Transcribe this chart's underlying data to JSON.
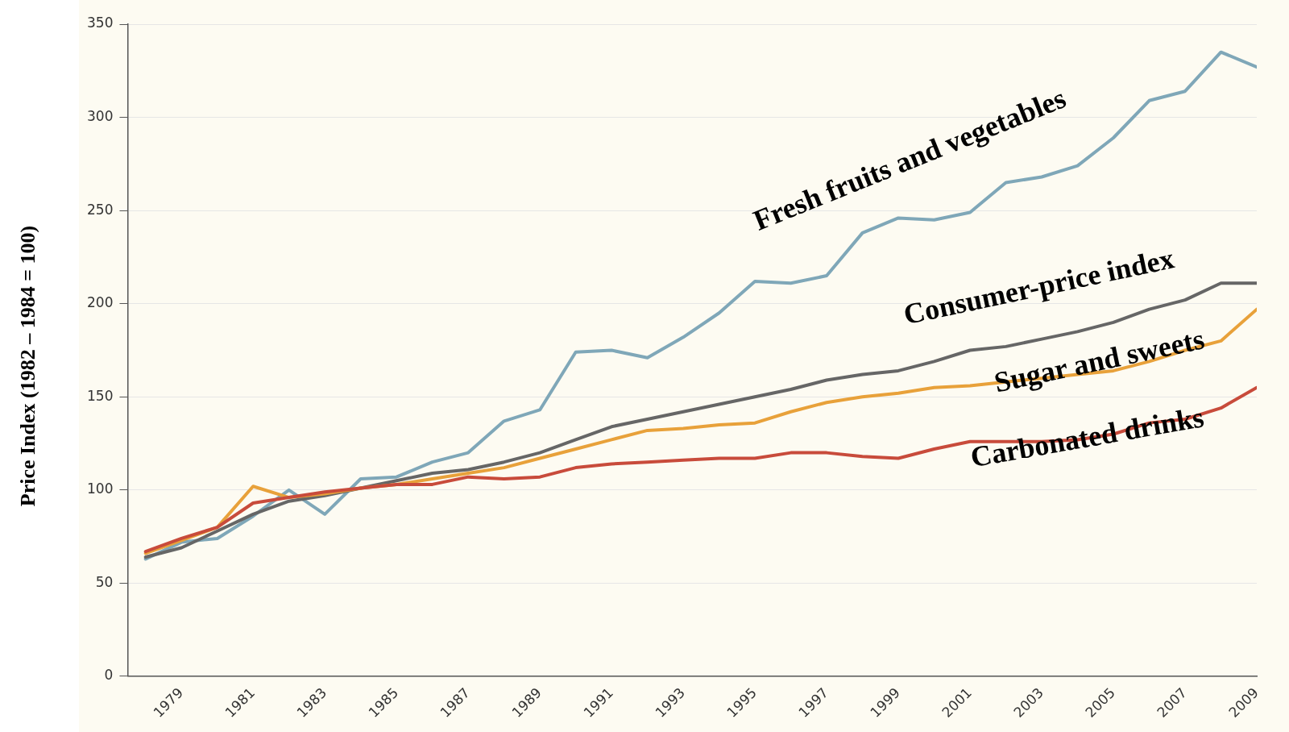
{
  "chart_data": {
    "type": "line",
    "ylabel": "Price Index (1982 – 1984 = 100)",
    "x": [
      1978,
      1979,
      1980,
      1981,
      1982,
      1983,
      1984,
      1985,
      1986,
      1987,
      1988,
      1989,
      1990,
      1991,
      1992,
      1993,
      1994,
      1995,
      1996,
      1997,
      1998,
      1999,
      2000,
      2001,
      2002,
      2003,
      2004,
      2005,
      2006,
      2007,
      2008,
      2009
    ],
    "xlim": [
      1977.5,
      2009
    ],
    "xticks": [
      1979,
      1981,
      1983,
      1985,
      1987,
      1989,
      1991,
      1993,
      1995,
      1997,
      1999,
      2001,
      2003,
      2005,
      2007,
      2009
    ],
    "ylim": [
      0,
      350
    ],
    "yticks": [
      0,
      50,
      100,
      150,
      200,
      250,
      300,
      350
    ],
    "grid": "y",
    "legend": false,
    "marker": "none",
    "line_style": "solid",
    "series": [
      {
        "name": "Carbonated drinks",
        "color": "#c84b3b",
        "values": [
          67,
          74,
          80,
          93,
          96,
          99,
          101,
          103,
          103,
          107,
          106,
          107,
          112,
          114,
          115,
          116,
          117,
          117,
          120,
          120,
          118,
          117,
          122,
          126,
          126,
          126,
          127,
          130,
          136,
          138,
          144,
          155
        ]
      },
      {
        "name": "Sugar and sweets",
        "color": "#e8a13a",
        "values": [
          66,
          73,
          80,
          102,
          96,
          98,
          101,
          103,
          106,
          109,
          112,
          117,
          122,
          127,
          132,
          133,
          135,
          136,
          142,
          147,
          150,
          152,
          155,
          156,
          158,
          160,
          162,
          164,
          169,
          175,
          180,
          197
        ]
      },
      {
        "name": "Consumer-price index",
        "color": "#666666",
        "values": [
          64,
          69,
          78,
          87,
          94,
          97,
          101,
          105,
          109,
          111,
          115,
          120,
          127,
          134,
          138,
          142,
          146,
          150,
          154,
          159,
          162,
          164,
          169,
          175,
          177,
          181,
          185,
          190,
          197,
          202,
          211,
          211
        ]
      },
      {
        "name": "Fresh fruits and vegetables",
        "color": "#7fa7b8",
        "values": [
          63,
          72,
          74,
          86,
          100,
          87,
          106,
          107,
          115,
          120,
          137,
          143,
          174,
          175,
          171,
          182,
          195,
          212,
          211,
          215,
          238,
          246,
          245,
          249,
          265,
          268,
          274,
          289,
          309,
          314,
          335,
          327
        ]
      }
    ]
  }
}
